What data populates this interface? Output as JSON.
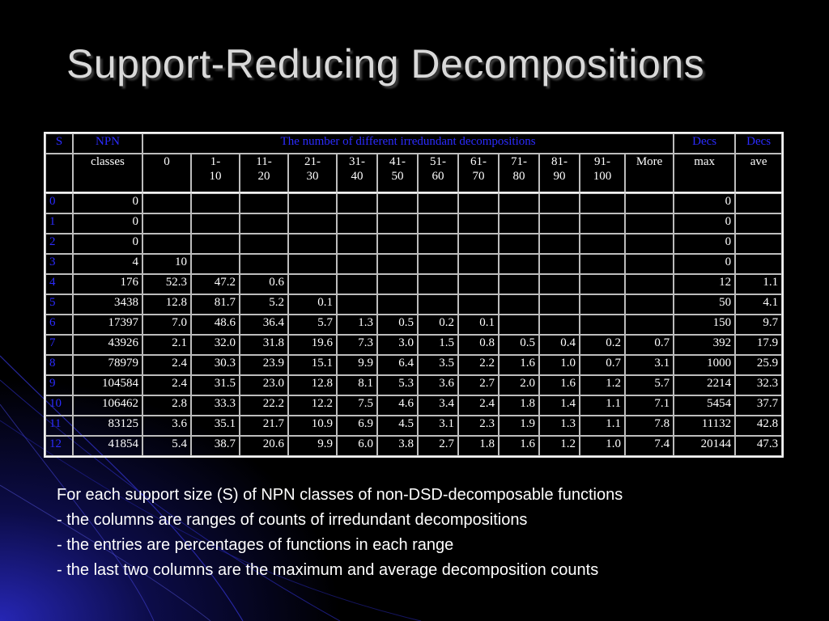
{
  "title": "Support-Reducing Decompositions",
  "table": {
    "header1": {
      "s": "S",
      "npn": "NPN",
      "span": "The number of different irredundant decompositions",
      "decs1": "Decs",
      "decs2": "Decs"
    },
    "header2": {
      "npn": "classes",
      "ranges": [
        "0",
        "1-\n10",
        "11-\n20",
        "21-\n30",
        "31-\n40",
        "41-\n50",
        "51-\n60",
        "61-\n70",
        "71-\n80",
        "81-\n90",
        "91-\n100",
        "More"
      ],
      "max": "max",
      "ave": "ave"
    },
    "rows": [
      {
        "s": "0",
        "npn": "0",
        "cells": [
          "",
          "",
          "",
          "",
          "",
          "",
          "",
          "",
          "",
          "",
          "",
          ""
        ],
        "max": "0",
        "ave": ""
      },
      {
        "s": "1",
        "npn": "0",
        "cells": [
          "",
          "",
          "",
          "",
          "",
          "",
          "",
          "",
          "",
          "",
          "",
          ""
        ],
        "max": "0",
        "ave": ""
      },
      {
        "s": "2",
        "npn": "0",
        "cells": [
          "",
          "",
          "",
          "",
          "",
          "",
          "",
          "",
          "",
          "",
          "",
          ""
        ],
        "max": "0",
        "ave": ""
      },
      {
        "s": "3",
        "npn": "4",
        "cells": [
          "10",
          "",
          "",
          "",
          "",
          "",
          "",
          "",
          "",
          "",
          "",
          ""
        ],
        "max": "0",
        "ave": ""
      },
      {
        "s": "4",
        "npn": "176",
        "cells": [
          "52.3",
          "47.2",
          "0.6",
          "",
          "",
          "",
          "",
          "",
          "",
          "",
          "",
          ""
        ],
        "max": "12",
        "ave": "1.1"
      },
      {
        "s": "5",
        "npn": "3438",
        "cells": [
          "12.8",
          "81.7",
          "5.2",
          "0.1",
          "",
          "",
          "",
          "",
          "",
          "",
          "",
          ""
        ],
        "max": "50",
        "ave": "4.1"
      },
      {
        "s": "6",
        "npn": "17397",
        "cells": [
          "7.0",
          "48.6",
          "36.4",
          "5.7",
          "1.3",
          "0.5",
          "0.2",
          "0.1",
          "",
          "",
          "",
          ""
        ],
        "max": "150",
        "ave": "9.7"
      },
      {
        "s": "7",
        "npn": "43926",
        "cells": [
          "2.1",
          "32.0",
          "31.8",
          "19.6",
          "7.3",
          "3.0",
          "1.5",
          "0.8",
          "0.5",
          "0.4",
          "0.2",
          "0.7"
        ],
        "max": "392",
        "ave": "17.9"
      },
      {
        "s": "8",
        "npn": "78979",
        "cells": [
          "2.4",
          "30.3",
          "23.9",
          "15.1",
          "9.9",
          "6.4",
          "3.5",
          "2.2",
          "1.6",
          "1.0",
          "0.7",
          "3.1"
        ],
        "max": "1000",
        "ave": "25.9"
      },
      {
        "s": "9",
        "npn": "104584",
        "cells": [
          "2.4",
          "31.5",
          "23.0",
          "12.8",
          "8.1",
          "5.3",
          "3.6",
          "2.7",
          "2.0",
          "1.6",
          "1.2",
          "5.7"
        ],
        "max": "2214",
        "ave": "32.3"
      },
      {
        "s": "10",
        "npn": "106462",
        "cells": [
          "2.8",
          "33.3",
          "22.2",
          "12.2",
          "7.5",
          "4.6",
          "3.4",
          "2.4",
          "1.8",
          "1.4",
          "1.1",
          "7.1"
        ],
        "max": "5454",
        "ave": "37.7"
      },
      {
        "s": "11",
        "npn": "83125",
        "cells": [
          "3.6",
          "35.1",
          "21.7",
          "10.9",
          "6.9",
          "4.5",
          "3.1",
          "2.3",
          "1.9",
          "1.3",
          "1.1",
          "7.8"
        ],
        "max": "11132",
        "ave": "42.8"
      },
      {
        "s": "12",
        "npn": "41854",
        "cells": [
          "5.4",
          "38.7",
          "20.6",
          "9.9",
          "6.0",
          "3.8",
          "2.7",
          "1.8",
          "1.6",
          "1.2",
          "1.0",
          "7.4"
        ],
        "max": "20144",
        "ave": "47.3"
      }
    ]
  },
  "notes": [
    "For each support size (S) of NPN classes of non-DSD-decomposable functions",
    "- the columns are ranges of counts of irredundant decompositions",
    "- the entries are percentages of functions in each range",
    "- the last two columns are the maximum and average decomposition counts"
  ],
  "colors": {
    "background": "#000000",
    "accent_blue": "#2b2bff",
    "title": "#d9d9d9"
  }
}
